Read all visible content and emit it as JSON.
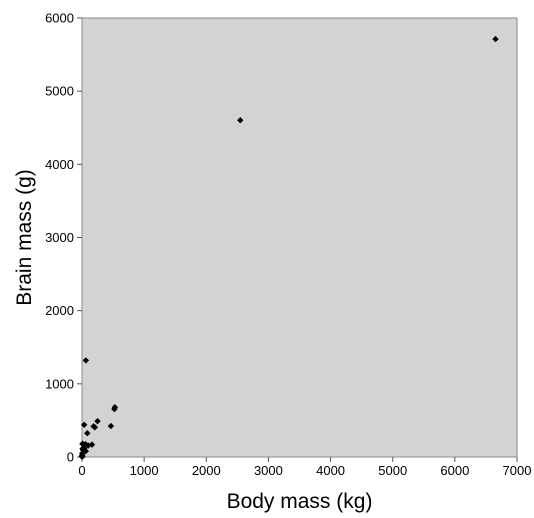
{
  "chart_data": {
    "type": "scatter",
    "title": "",
    "xlabel": "Body mass (kg)",
    "ylabel": "Brain mass (g)",
    "xlim": [
      0,
      7000
    ],
    "ylim": [
      0,
      6000
    ],
    "x_ticks": [
      "0",
      "1000",
      "2000",
      "3000",
      "4000",
      "5000",
      "6000",
      "7000"
    ],
    "y_ticks": [
      "0",
      "1000",
      "2000",
      "3000",
      "4000",
      "5000",
      "6000"
    ],
    "grid": false,
    "legend": "none",
    "colors": {
      "plot_background": "#d3d3d3",
      "marker": "#000000"
    },
    "marker": "diamond",
    "x": [
      6654,
      2547,
      62,
      521,
      529,
      465,
      250,
      207,
      187,
      160,
      100,
      60,
      36,
      35,
      27,
      10,
      10,
      3.3,
      6.8,
      1.0,
      4.2,
      55.5,
      85,
      4.0,
      14,
      0.9,
      1.4,
      2.5,
      3.5
    ],
    "y": [
      5712,
      4603,
      1320,
      655,
      680,
      423,
      490,
      406,
      419,
      169,
      157,
      81,
      119,
      440,
      115,
      180,
      115,
      25.6,
      179,
      6.6,
      50.4,
      175,
      325,
      12.1,
      98.2,
      2.6,
      12.5,
      12.3,
      3.9
    ]
  }
}
